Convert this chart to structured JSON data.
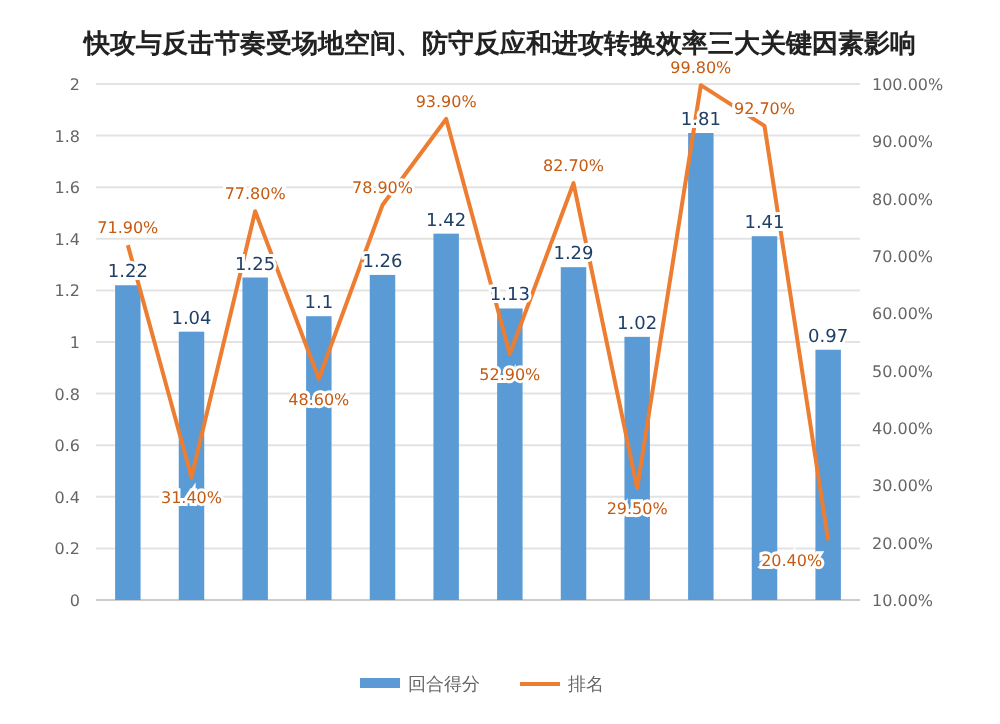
{
  "chart_data": {
    "type": "bar",
    "title": "快攻与反击节奏受场地空间、防守反应和进攻转换效率三大关键因素影响",
    "categories": [
      null,
      null,
      null,
      null,
      null,
      null,
      null,
      null,
      null,
      null,
      null,
      null
    ],
    "series": [
      {
        "name": "回合得分",
        "color": "#5b9bd5",
        "values": [
          1.22,
          1.04,
          1.25,
          1.1,
          1.26,
          1.42,
          1.13,
          1.29,
          1.02,
          1.81,
          1.41,
          0.97
        ]
      },
      {
        "name": "排名",
        "type": "line",
        "axis": "y2",
        "color": "#ed7d31",
        "values": [
          71.9,
          31.4,
          77.8,
          48.6,
          78.9,
          93.9,
          52.9,
          82.7,
          29.5,
          99.8,
          92.7,
          20.4
        ],
        "value_labels": [
          "71.90%",
          "31.40%",
          "77.80%",
          "48.60%",
          "78.90%",
          "93.90%",
          "52.90%",
          "82.70%",
          "29.50%",
          "99.80%",
          "92.70%",
          "20.40%"
        ]
      }
    ],
    "ylim": [
      0,
      2
    ],
    "yticks": [
      0,
      0.2,
      0.4,
      0.6,
      0.8,
      1,
      1.2,
      1.4,
      1.6,
      1.8,
      2
    ],
    "y2lim": [
      10,
      100
    ],
    "y2ticks": [
      {
        "value": 10,
        "label": "10.00%"
      },
      {
        "value": 20,
        "label": "20.00%"
      },
      {
        "value": 30,
        "label": "30.00%"
      },
      {
        "value": 40,
        "label": "40.00%"
      },
      {
        "value": 50,
        "label": "50.00%"
      },
      {
        "value": 60,
        "label": "60.00%"
      },
      {
        "value": 70,
        "label": "70.00%"
      },
      {
        "value": 80,
        "label": "80.00%"
      },
      {
        "value": 90,
        "label": "90.00%"
      },
      {
        "value": 100,
        "label": "100.00%"
      }
    ],
    "grid": "y",
    "legend": "bottom",
    "marker": "none",
    "data_labels": true
  }
}
